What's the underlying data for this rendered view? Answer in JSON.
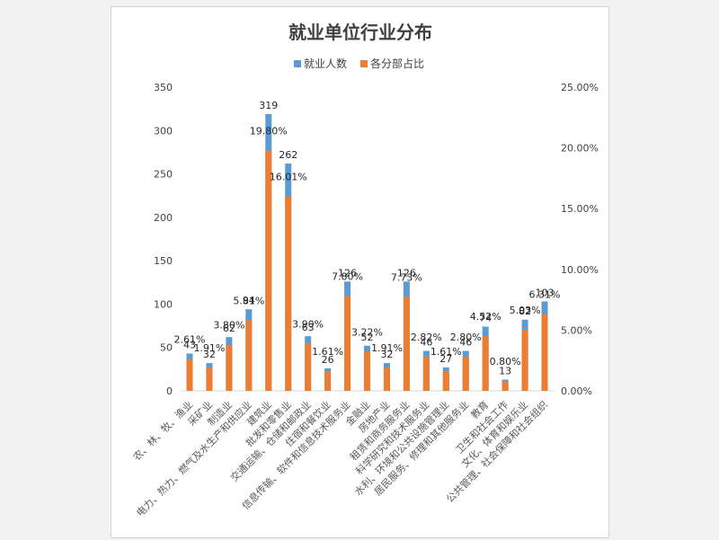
{
  "chart_data": {
    "type": "bar",
    "title": "就业单位行业分布",
    "legend_position": "top",
    "series": [
      {
        "name": "就业人数",
        "color": "#5b9bd5",
        "axis": "left",
        "values": [
          43,
          32,
          62,
          94,
          319,
          262,
          63,
          26,
          126,
          52,
          32,
          126,
          46,
          27,
          46,
          74,
          13,
          82,
          103
        ]
      },
      {
        "name": "各分部占比",
        "color": "#ed7d31",
        "axis": "right",
        "values": [
          2.61,
          1.91,
          3.8,
          5.81,
          19.8,
          16.01,
          3.9,
          1.61,
          7.8,
          3.22,
          1.91,
          7.73,
          2.82,
          1.61,
          2.8,
          4.52,
          0.8,
          5.03,
          6.31
        ]
      }
    ],
    "count_labels": [
      "43",
      "32",
      "62",
      "94",
      "319",
      "262",
      "63",
      "26",
      "126",
      "52",
      "32",
      "126",
      "46",
      "27",
      "46",
      "74",
      "13",
      "82",
      "103"
    ],
    "percent_labels": [
      "2.61%",
      "1.91%",
      "3.80%",
      "5.81%",
      "19.80%",
      "16.01%",
      "3.90%",
      "1.61%",
      "7.80%",
      "3.22%",
      "1.91%",
      "7.73%",
      "2.82%",
      "1.61%",
      "2.80%",
      "4.52%",
      "0.80%",
      "5.03%",
      "6.31%"
    ],
    "categories": [
      "农、林、牧、渔业",
      "采矿业",
      "制造业",
      "电力、热力、燃气及水生产和供应业",
      "建筑业",
      "批发和零售业",
      "交通运输、仓储和邮政业",
      "住宿和餐饮业",
      "信息传输、软件和信息技术服务业",
      "金融业",
      "房地产业",
      "租赁和商务服务业",
      "科学研究和技术服务业",
      "水利、环境和公共设施管理业",
      "居民服务、修理和其他服务业",
      "教育",
      "卫生和社会工作",
      "文化、体育和娱乐业",
      "公共管理、社会保障和社会组织"
    ],
    "y_left": {
      "min": 0,
      "max": 350,
      "ticks": [
        "0",
        "50",
        "100",
        "150",
        "200",
        "250",
        "300",
        "350"
      ]
    },
    "y_right": {
      "min": 0,
      "max": 25,
      "ticks": [
        "0.00%",
        "5.00%",
        "10.00%",
        "15.00%",
        "20.00%",
        "25.00%"
      ]
    },
    "grid": false
  }
}
